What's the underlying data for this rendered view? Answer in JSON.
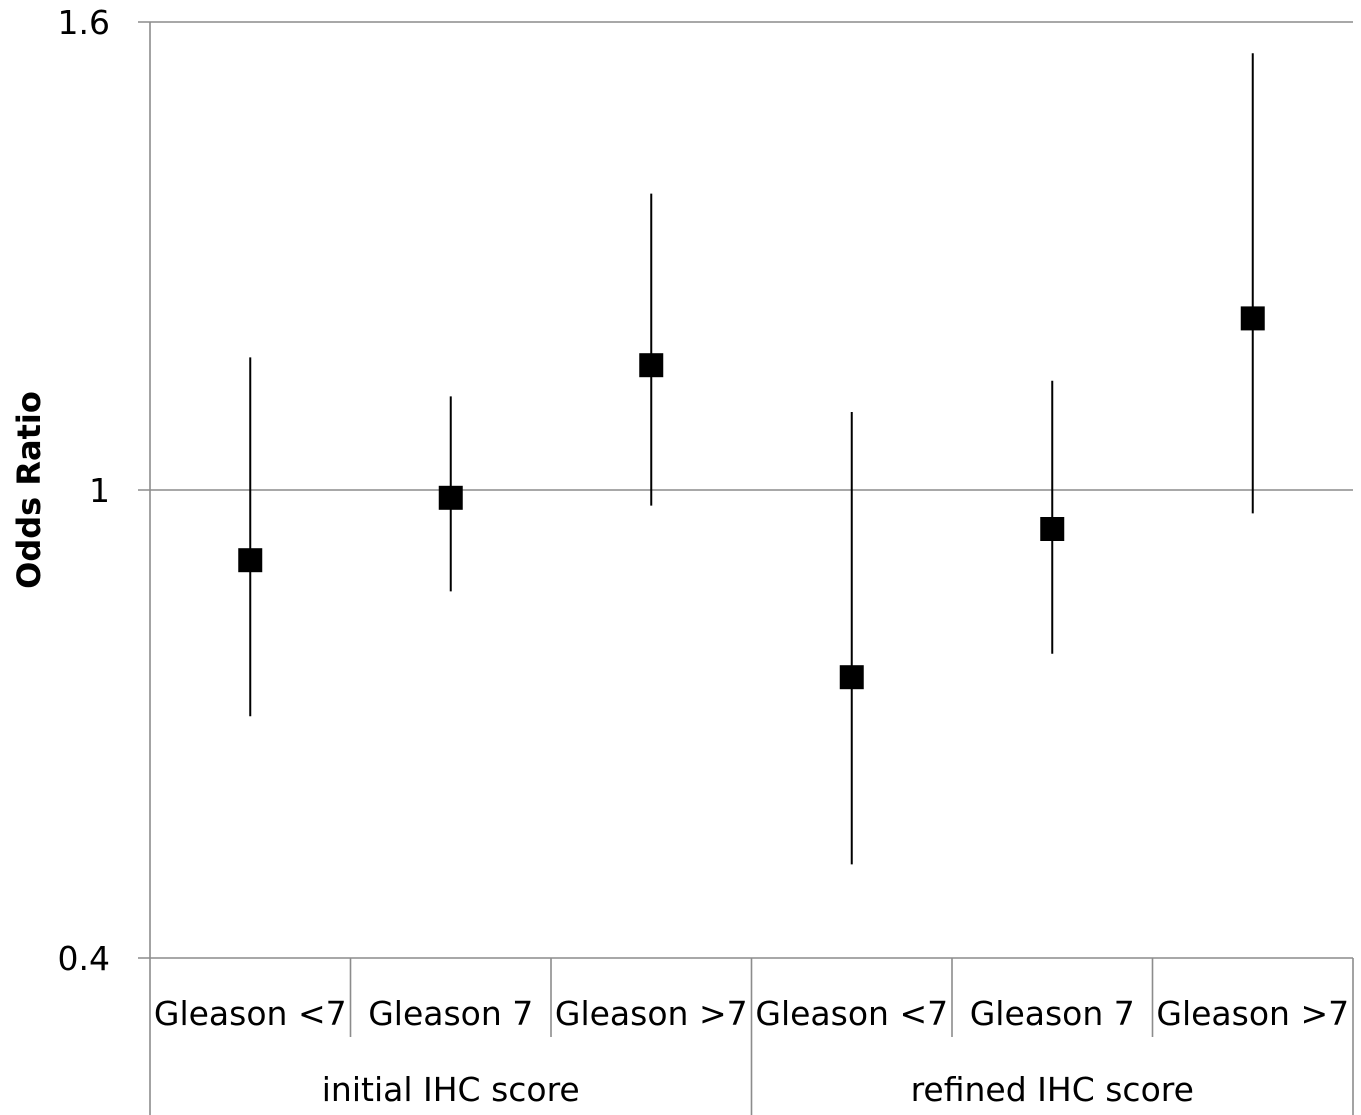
{
  "chart_data": {
    "type": "scatter",
    "title": "",
    "xlabel": "",
    "ylabel": "Odds Ratio",
    "ylim": [
      0.4,
      1.6
    ],
    "yticks": [
      "1.6",
      "1",
      "0.4"
    ],
    "ytick_values": [
      1.6,
      1.0,
      0.4
    ],
    "groups": [
      {
        "label": "initial IHC score",
        "categories": [
          "Gleason <7",
          "Gleason 7",
          "Gleason >7"
        ]
      },
      {
        "label": "refined IHC score",
        "categories": [
          "Gleason <7",
          "Gleason 7",
          "Gleason >7"
        ]
      }
    ],
    "series": [
      {
        "values": [
          0.91,
          0.99,
          1.16,
          0.76,
          0.95,
          1.22
        ],
        "lower": [
          0.71,
          0.87,
          0.98,
          0.52,
          0.79,
          0.97
        ],
        "upper": [
          1.17,
          1.12,
          1.38,
          1.1,
          1.14,
          1.56
        ]
      }
    ],
    "grid": "horizontal gridlines at ticks",
    "legend": "none",
    "marker": "square",
    "marker_color": "#000000",
    "axis_color": "#8c8c8c"
  }
}
